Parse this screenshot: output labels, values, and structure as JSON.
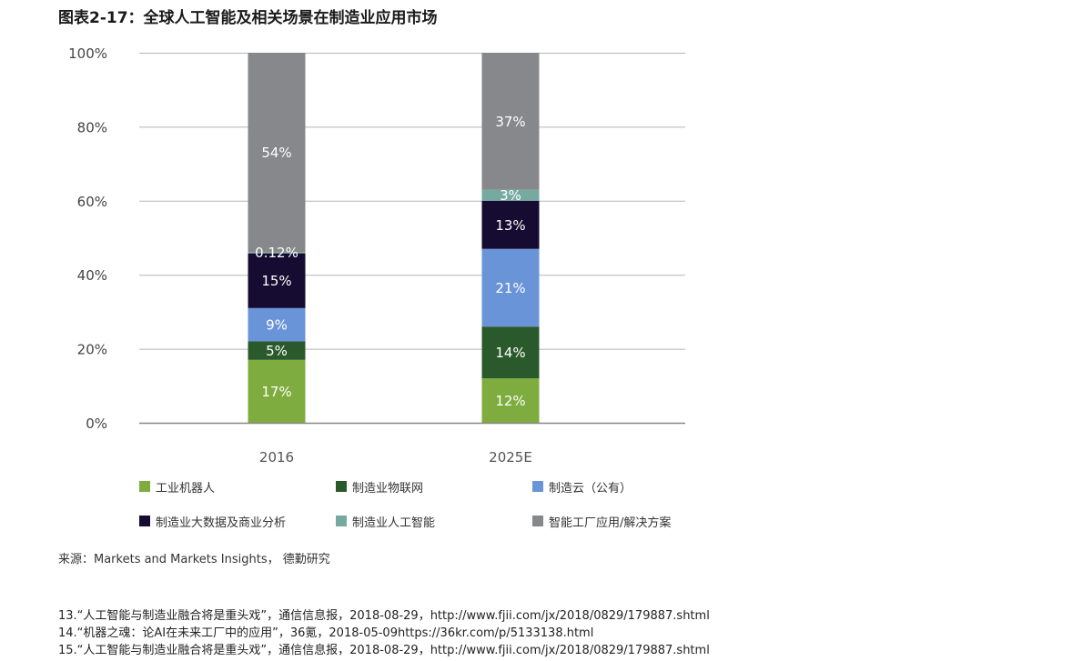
{
  "title": "图表2-17：全球人工智能及相关场景在制造业应用市场",
  "chart_data": {
    "type": "bar",
    "stacked": true,
    "categories": [
      "2016",
      "2025E"
    ],
    "ylim": [
      0,
      100
    ],
    "yticks": [
      "0%",
      "20%",
      "40%",
      "60%",
      "80%",
      "100%"
    ],
    "grid": true,
    "legend_position": "bottom",
    "series": [
      {
        "name": "工业机器人",
        "color": "#7fac3e",
        "values": [
          17,
          12
        ],
        "labels": [
          "17%",
          "12%"
        ]
      },
      {
        "name": "制造业物联网",
        "color": "#2a5a2c",
        "values": [
          5,
          14
        ],
        "labels": [
          "5%",
          "14%"
        ]
      },
      {
        "name": "制造云（公有）",
        "color": "#6a94d8",
        "values": [
          9,
          21
        ],
        "labels": [
          "9%",
          "21%"
        ]
      },
      {
        "name": "制造业大数据及商业分析",
        "color": "#160b30",
        "values": [
          15,
          13
        ],
        "labels": [
          "15%",
          "13%"
        ]
      },
      {
        "name": "制造业人工智能",
        "color": "#76a99f",
        "values": [
          0.12,
          3
        ],
        "labels": [
          "0.12%",
          "3%"
        ]
      },
      {
        "name": "智能工厂应用/解决方案",
        "color": "#87888c",
        "values": [
          54,
          37
        ],
        "labels": [
          "54%",
          "37%"
        ]
      }
    ]
  },
  "source": "来源：Markets and Markets Insights， 德勤研究",
  "footnotes": [
    "13.“人工智能与制造业融合将是重头戏”，通信信息报，2018-08-29，http://www.fjii.com/jx/2018/0829/179887.shtml",
    "14.“机器之魂：论AI在未来工厂中的应用”，36氪，2018-05-09https://36kr.com/p/5133138.html",
    "15.“人工智能与制造业融合将是重头戏”，通信信息报，2018-08-29，http://www.fjii.com/jx/2018/0829/179887.shtml"
  ]
}
